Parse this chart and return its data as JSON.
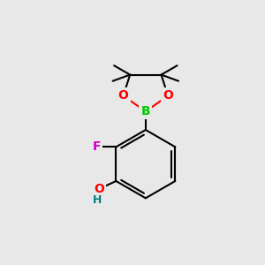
{
  "background_color": "#e8e8e8",
  "bond_color": "#000000",
  "bond_width": 1.5,
  "atom_colors": {
    "B": "#00cc00",
    "O": "#ff0000",
    "F": "#cc00cc",
    "OH_O": "#ff0000",
    "OH_H": "#008080",
    "C": "#000000"
  },
  "font_size_atoms": 10,
  "font_size_h": 9
}
